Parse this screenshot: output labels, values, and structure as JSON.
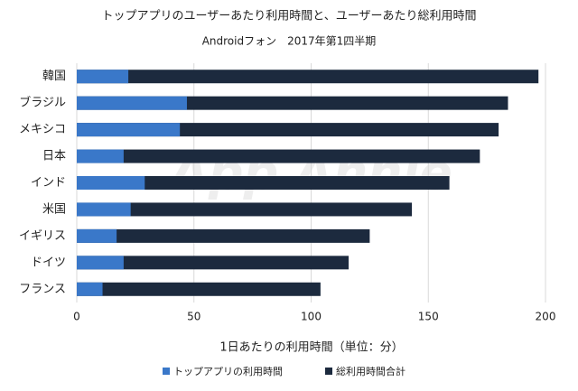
{
  "chart_data": {
    "type": "bar",
    "orientation": "horizontal",
    "title": "トップアプリのユーザーあたり利用時間と、ユーザーあたり総利用時間",
    "subtitle": "Androidフォン　2017年第1四半期",
    "watermark": "App Annie",
    "x_label": "1日あたりの利用時間（単位：分）",
    "categories": [
      "韓国",
      "ブラジル",
      "メキシコ",
      "日本",
      "インド",
      "米国",
      "イギリス",
      "ドイツ",
      "フランス"
    ],
    "series": [
      {
        "name": "トップアプリの利用時間",
        "color": "#3a78c9",
        "values": [
          22,
          47,
          44,
          20,
          29,
          23,
          17,
          20,
          11
        ]
      },
      {
        "name": "総利用時間合計",
        "color": "#1c2a3e",
        "values": [
          197,
          184,
          180,
          172,
          159,
          143,
          125,
          116,
          104
        ]
      }
    ],
    "xlim": [
      0,
      200
    ],
    "xticks": [
      0,
      50,
      100,
      150,
      200
    ],
    "grid": true,
    "legend": "bottom"
  }
}
